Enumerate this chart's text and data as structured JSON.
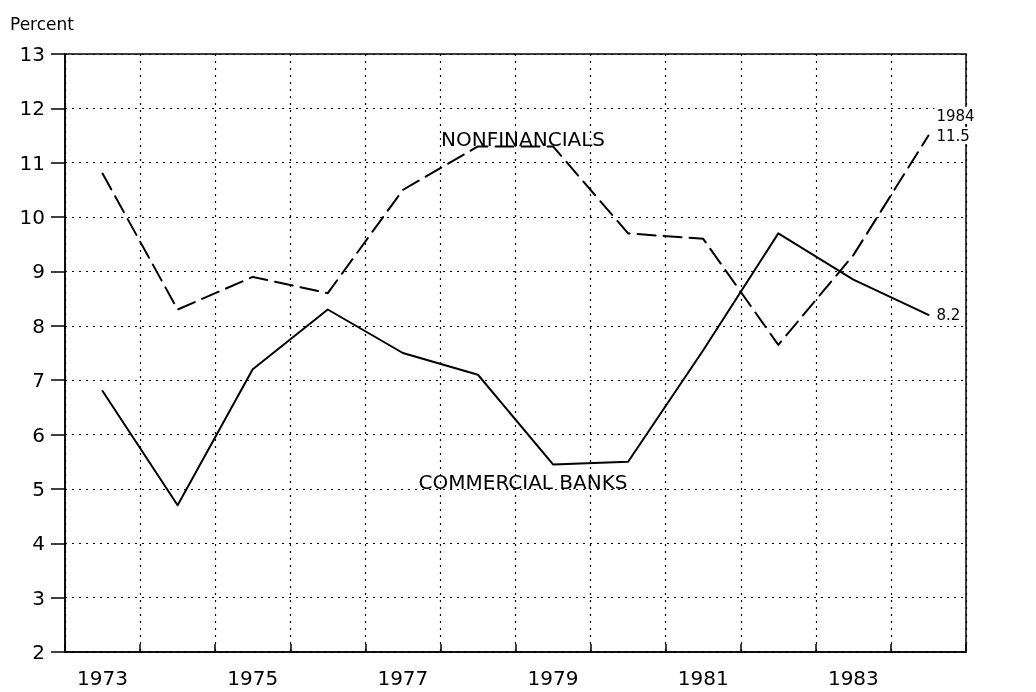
{
  "chart_data": {
    "type": "line",
    "ylabel": "Percent",
    "categories": [
      "1973",
      null,
      "1975",
      null,
      "1977",
      null,
      "1979",
      null,
      "1981",
      null,
      "1983",
      null
    ],
    "series": [
      {
        "name": "NONFINANCIALS",
        "color": "#000000",
        "line_style": "dashed",
        "values": [
          10.8,
          8.3,
          8.9,
          8.6,
          10.5,
          11.3,
          11.3,
          9.7,
          9.6,
          7.65,
          9.3,
          11.5
        ],
        "value_labels": [
          null,
          null,
          null,
          null,
          null,
          null,
          null,
          null,
          null,
          null,
          null,
          "11.5"
        ]
      },
      {
        "name": "COMMERCIAL BANKS",
        "color": "#000000",
        "line_style": "solid",
        "values": [
          6.8,
          4.7,
          7.2,
          8.3,
          7.5,
          7.1,
          5.45,
          5.5,
          7.55,
          9.7,
          8.85,
          8.2
        ],
        "value_labels": [
          null,
          null,
          null,
          null,
          null,
          null,
          null,
          null,
          null,
          null,
          null,
          "8.2"
        ]
      }
    ],
    "annotations": [
      "1984"
    ],
    "ylim": [
      2,
      13
    ],
    "yticks": [
      2,
      3,
      4,
      5,
      6,
      7,
      8,
      9,
      10,
      11,
      12,
      13
    ],
    "grid": true,
    "legend": false,
    "marker": "none"
  }
}
